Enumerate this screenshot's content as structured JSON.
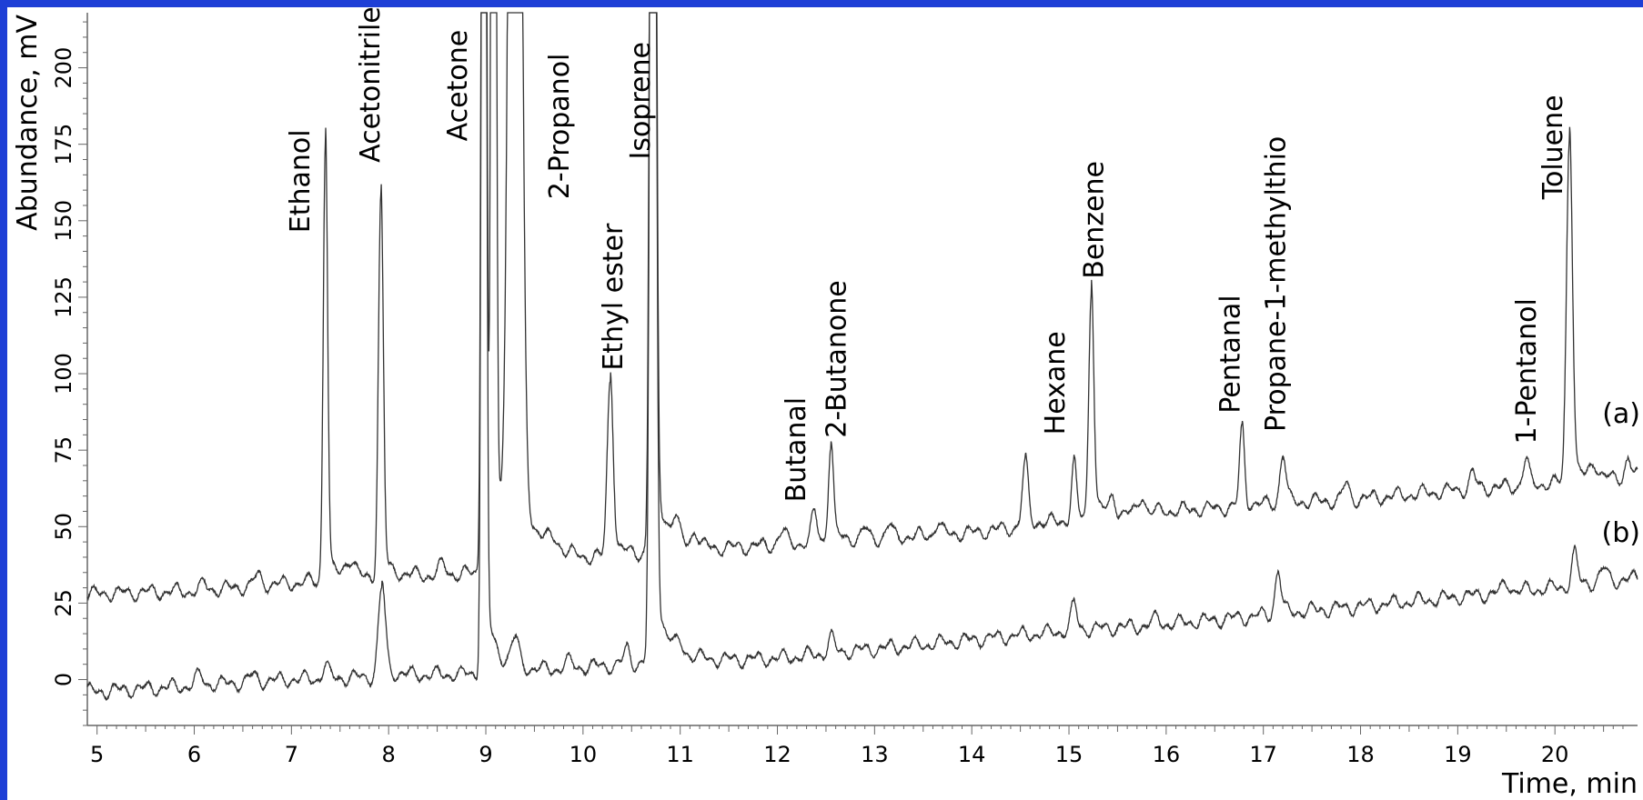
{
  "chart_data": {
    "type": "line",
    "xlabel": "Time, min",
    "ylabel": "Abundance, mV",
    "xlim": [
      4.9,
      20.85
    ],
    "ylim": [
      -15,
      218
    ],
    "xticks": [
      "5",
      "6",
      "7",
      "8",
      "9",
      "10",
      "11",
      "12",
      "13",
      "14",
      "15",
      "16",
      "17",
      "18",
      "19",
      "20"
    ],
    "yticks": [
      "0",
      "25",
      "50",
      "75",
      "100",
      "125",
      "150",
      "175",
      "200"
    ],
    "grid": false,
    "series": [
      {
        "name": "(a)",
        "color": "#333333",
        "baseline": [
          [
            4.9,
            28
          ],
          [
            6.0,
            29
          ],
          [
            7.2,
            32
          ],
          [
            8.5,
            34
          ],
          [
            9.5,
            36
          ],
          [
            10.0,
            38
          ],
          [
            11.0,
            42
          ],
          [
            12.0,
            44
          ],
          [
            13.0,
            46
          ],
          [
            14.0,
            48
          ],
          [
            15.0,
            52
          ],
          [
            16.0,
            55
          ],
          [
            17.0,
            57
          ],
          [
            18.0,
            59
          ],
          [
            19.0,
            62
          ],
          [
            20.0,
            64
          ],
          [
            20.85,
            66
          ]
        ],
        "peaks": [
          {
            "x": 6.1,
            "h": 2,
            "w": 0.03
          },
          {
            "x": 6.65,
            "h": 3,
            "w": 0.04
          },
          {
            "x": 7.35,
            "h": 145,
            "w": 0.022
          },
          {
            "x": 7.6,
            "h": 6,
            "w": 0.05
          },
          {
            "x": 7.92,
            "h": 124,
            "w": 0.025
          },
          {
            "x": 8.55,
            "h": 3,
            "w": 0.04
          },
          {
            "x": 8.98,
            "h": 600,
            "w": 0.02
          },
          {
            "x": 9.08,
            "h": 600,
            "w": 0.02
          },
          {
            "x": 9.3,
            "h": 600,
            "w": 0.05
          },
          {
            "x": 9.7,
            "h": 3,
            "w": 0.05
          },
          {
            "x": 10.28,
            "h": 58,
            "w": 0.03
          },
          {
            "x": 10.72,
            "h": 600,
            "w": 0.025
          },
          {
            "x": 10.95,
            "h": 6,
            "w": 0.03
          },
          {
            "x": 11.15,
            "h": 5,
            "w": 0.03
          },
          {
            "x": 12.05,
            "h": 4,
            "w": 0.04
          },
          {
            "x": 12.38,
            "h": 9,
            "w": 0.03
          },
          {
            "x": 12.55,
            "h": 32,
            "w": 0.025
          },
          {
            "x": 12.9,
            "h": 3,
            "w": 0.03
          },
          {
            "x": 13.15,
            "h": 4,
            "w": 0.03
          },
          {
            "x": 13.65,
            "h": 4,
            "w": 0.03
          },
          {
            "x": 14.55,
            "h": 20,
            "w": 0.03
          },
          {
            "x": 15.05,
            "h": 18,
            "w": 0.025
          },
          {
            "x": 15.23,
            "h": 75,
            "w": 0.025
          },
          {
            "x": 15.45,
            "h": 5,
            "w": 0.03
          },
          {
            "x": 15.75,
            "h": 6,
            "w": 0.03
          },
          {
            "x": 16.78,
            "h": 25,
            "w": 0.025
          },
          {
            "x": 17.2,
            "h": 16,
            "w": 0.03
          },
          {
            "x": 17.85,
            "h": 5,
            "w": 0.03
          },
          {
            "x": 19.15,
            "h": 5,
            "w": 0.03
          },
          {
            "x": 19.7,
            "h": 8,
            "w": 0.03
          },
          {
            "x": 20.15,
            "h": 114,
            "w": 0.03
          },
          {
            "x": 20.4,
            "h": 5,
            "w": 0.04
          },
          {
            "x": 20.75,
            "h": 6,
            "w": 0.03
          }
        ]
      },
      {
        "name": "(b)",
        "color": "#333333",
        "baseline": [
          [
            4.9,
            -4
          ],
          [
            6.0,
            -2
          ],
          [
            7.0,
            0
          ],
          [
            8.0,
            1
          ],
          [
            9.0,
            2
          ],
          [
            10.0,
            4
          ],
          [
            11.0,
            6
          ],
          [
            12.0,
            7
          ],
          [
            13.0,
            10
          ],
          [
            14.0,
            13
          ],
          [
            15.0,
            16
          ],
          [
            16.0,
            18
          ],
          [
            17.0,
            21
          ],
          [
            18.0,
            24
          ],
          [
            19.0,
            27
          ],
          [
            20.0,
            30
          ],
          [
            20.85,
            33
          ]
        ],
        "peaks": [
          {
            "x": 6.05,
            "h": 3,
            "w": 0.04
          },
          {
            "x": 6.6,
            "h": 2,
            "w": 0.04
          },
          {
            "x": 7.35,
            "h": 4,
            "w": 0.03
          },
          {
            "x": 7.93,
            "h": 29,
            "w": 0.035
          },
          {
            "x": 8.98,
            "h": 600,
            "w": 0.02
          },
          {
            "x": 9.3,
            "h": 9,
            "w": 0.04
          },
          {
            "x": 9.85,
            "h": 2,
            "w": 0.04
          },
          {
            "x": 10.45,
            "h": 5,
            "w": 0.03
          },
          {
            "x": 10.72,
            "h": 600,
            "w": 0.025
          },
          {
            "x": 11.0,
            "h": 2,
            "w": 0.03
          },
          {
            "x": 12.55,
            "h": 5,
            "w": 0.03
          },
          {
            "x": 15.05,
            "h": 8,
            "w": 0.03
          },
          {
            "x": 15.9,
            "h": 2,
            "w": 0.04
          },
          {
            "x": 17.15,
            "h": 14,
            "w": 0.03
          },
          {
            "x": 19.5,
            "h": 3,
            "w": 0.04
          },
          {
            "x": 20.2,
            "h": 10,
            "w": 0.03
          },
          {
            "x": 20.5,
            "h": 4,
            "w": 0.04
          }
        ]
      }
    ],
    "peak_labels": [
      {
        "text": "Ethanol",
        "x": 7.08,
        "y_bottom": 146
      },
      {
        "text": "Acetonitrile",
        "x": 7.8,
        "y_bottom": 169
      },
      {
        "text": "Acetone",
        "x": 8.7,
        "y_bottom": 176
      },
      {
        "text": "2-Propanol",
        "x": 9.75,
        "y_bottom": 157
      },
      {
        "text": "Ethyl ester",
        "x": 10.3,
        "y_bottom": 101
      },
      {
        "text": "Isoprene",
        "x": 10.58,
        "y_bottom": 170
      },
      {
        "text": "Butanal",
        "x": 12.18,
        "y_bottom": 58
      },
      {
        "text": "2-Butanone",
        "x": 12.6,
        "y_bottom": 79
      },
      {
        "text": "Hexane",
        "x": 14.85,
        "y_bottom": 80
      },
      {
        "text": "Benzene",
        "x": 15.25,
        "y_bottom": 131
      },
      {
        "text": "Pentanal",
        "x": 16.65,
        "y_bottom": 87
      },
      {
        "text": "Propane-1-methylthio",
        "x": 17.12,
        "y_bottom": 81
      },
      {
        "text": "1-Pentanol",
        "x": 19.7,
        "y_bottom": 77
      },
      {
        "text": "Toluene",
        "x": 19.97,
        "y_bottom": 157
      }
    ]
  }
}
